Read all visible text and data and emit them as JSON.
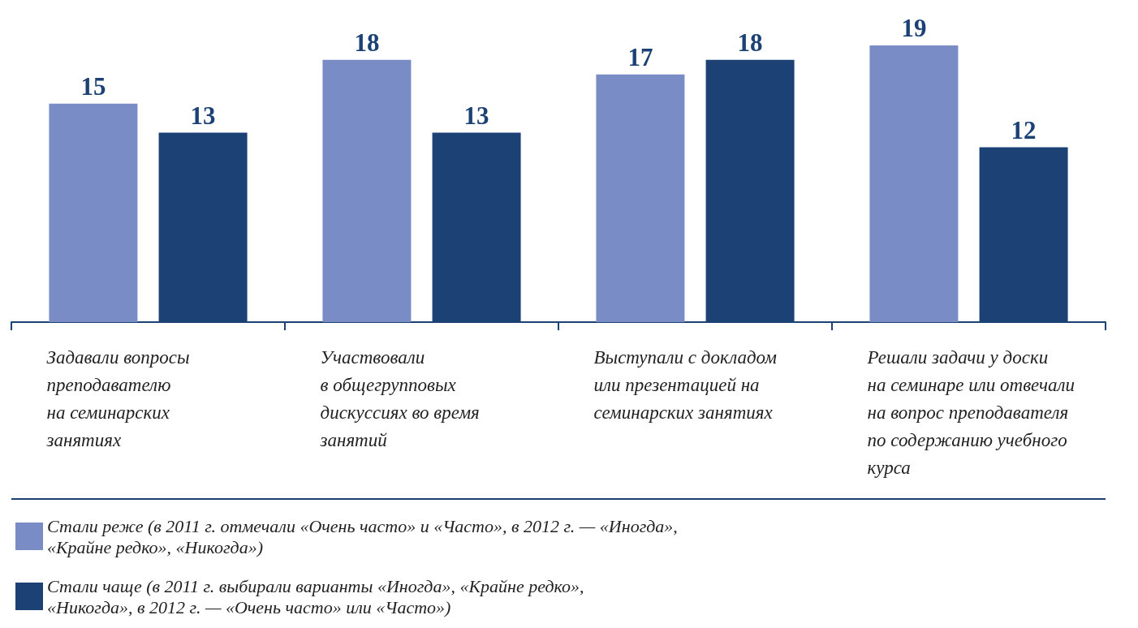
{
  "chart_data": {
    "type": "bar",
    "categories": [
      "Задавали вопросы\nпреподавателю\nна семинарских\nзанятиях",
      "Участвовали\nв общегрупповых\nдискуссиях во время\nзанятий",
      "Выступали с докладом\nили презентацией на\nсеминарских занятиях",
      "Решали задачи у доски\nна семинаре или отвечали\nна вопрос преподавателя\nпо содержанию учебного\nкурса"
    ],
    "series": [
      {
        "name": "Стали реже (в 2011 г. отмечали «Очень часто» и «Часто», в 2012 г. — «Иногда», «Крайне редко», «Никогда»)",
        "color": "#7a8cc6",
        "values": [
          15,
          18,
          17,
          19
        ]
      },
      {
        "name": "Стали чаще (в 2011 г. выбирали варианты «Иногда», «Крайне редко», «Никогда», в 2012 г. — «Очень часто» или «Часто»)",
        "color": "#1b4175",
        "values": [
          13,
          13,
          18,
          12
        ]
      }
    ],
    "data_labels": true,
    "legend": "bottom left",
    "grid": false,
    "tick_labels": "x"
  }
}
